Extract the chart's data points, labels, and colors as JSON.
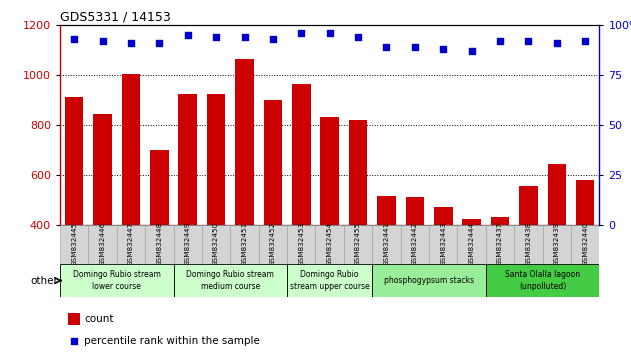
{
  "title": "GDS5331 / 14153",
  "samples": [
    "GSM832445",
    "GSM832446",
    "GSM832447",
    "GSM832448",
    "GSM832449",
    "GSM832450",
    "GSM832451",
    "GSM832452",
    "GSM832453",
    "GSM832454",
    "GSM832455",
    "GSM832441",
    "GSM832442",
    "GSM832443",
    "GSM832444",
    "GSM832437",
    "GSM832438",
    "GSM832439",
    "GSM832440"
  ],
  "counts": [
    910,
    845,
    1005,
    700,
    925,
    925,
    1065,
    900,
    965,
    830,
    820,
    515,
    510,
    470,
    425,
    430,
    555,
    645,
    580
  ],
  "percentiles": [
    93,
    92,
    91,
    91,
    95,
    94,
    94,
    93,
    96,
    96,
    94,
    89,
    89,
    88,
    87,
    92,
    92,
    91,
    92
  ],
  "bar_color": "#cc0000",
  "dot_color": "#0000cc",
  "ylim_left": [
    400,
    1200
  ],
  "ylim_right": [
    0,
    100
  ],
  "yticks_left": [
    400,
    600,
    800,
    1000,
    1200
  ],
  "yticks_right": [
    0,
    25,
    50,
    75,
    100
  ],
  "ytick_right_labels": [
    "0",
    "25",
    "50",
    "75",
    "100%"
  ],
  "groups": [
    {
      "label": "Domingo Rubio stream\nlower course",
      "start": 0,
      "end": 3,
      "color": "#ccffcc"
    },
    {
      "label": "Domingo Rubio stream\nmedium course",
      "start": 4,
      "end": 7,
      "color": "#ccffcc"
    },
    {
      "label": "Domingo Rubio\nstream upper course",
      "start": 8,
      "end": 10,
      "color": "#ccffcc"
    },
    {
      "label": "phosphogypsum stacks",
      "start": 11,
      "end": 14,
      "color": "#99ee99"
    },
    {
      "label": "Santa Olalla lagoon\n(unpolluted)",
      "start": 15,
      "end": 18,
      "color": "#44cc44"
    }
  ],
  "legend_count_label": "count",
  "legend_pct_label": "percentile rank within the sample",
  "other_label": "other",
  "bar_color_hex": "#cc0000",
  "dot_color_hex": "#0000cc",
  "label_bg_color": "#cccccc",
  "label_edge_color": "#888888"
}
